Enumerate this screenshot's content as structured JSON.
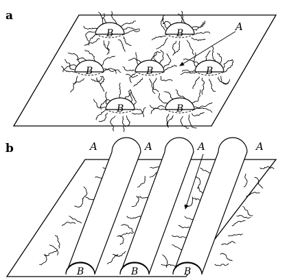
{
  "panel_a": {
    "letter": "a",
    "label_A": "A",
    "micelles": [
      {
        "label": "B"
      },
      {
        "label": "B"
      },
      {
        "label": "B"
      },
      {
        "label": "B"
      },
      {
        "label": "B"
      },
      {
        "label": "B"
      },
      {
        "label": "B"
      }
    ]
  },
  "panel_b": {
    "letter": "b",
    "top_labels": [
      "A",
      "A",
      "A",
      "A"
    ],
    "cylinders": [
      {
        "label": "B"
      },
      {
        "label": "B"
      },
      {
        "label": "B"
      }
    ]
  },
  "colors": {
    "stroke": "#000000",
    "background": "#ffffff"
  }
}
